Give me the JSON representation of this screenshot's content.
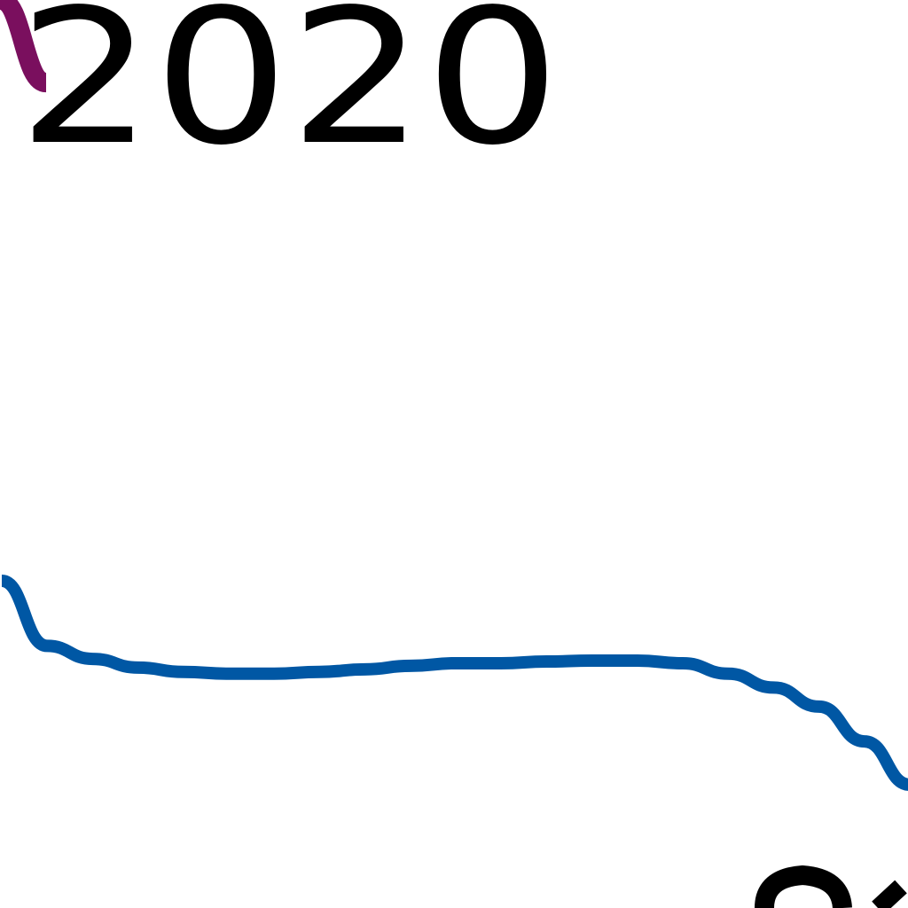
{
  "chart_data": {
    "type": "line",
    "annotations": [
      "2020"
    ],
    "series": [
      {
        "color": "#0057a4",
        "x": [
          0,
          1,
          2,
          3,
          4,
          5,
          6,
          7,
          8,
          9,
          10,
          11,
          12,
          13,
          14,
          15,
          16,
          17,
          18,
          19,
          20
        ],
        "values": [
          6.55,
          7.3,
          7.45,
          7.55,
          7.6,
          7.62,
          7.62,
          7.6,
          7.57,
          7.53,
          7.5,
          7.5,
          7.48,
          7.47,
          7.47,
          7.5,
          7.62,
          7.78,
          8.0,
          8.4,
          8.9
        ]
      },
      {
        "color": "#7a0f5e",
        "x": [
          0,
          1
        ],
        "values": [
          1.0,
          0.02
        ]
      }
    ],
    "grid": false
  }
}
